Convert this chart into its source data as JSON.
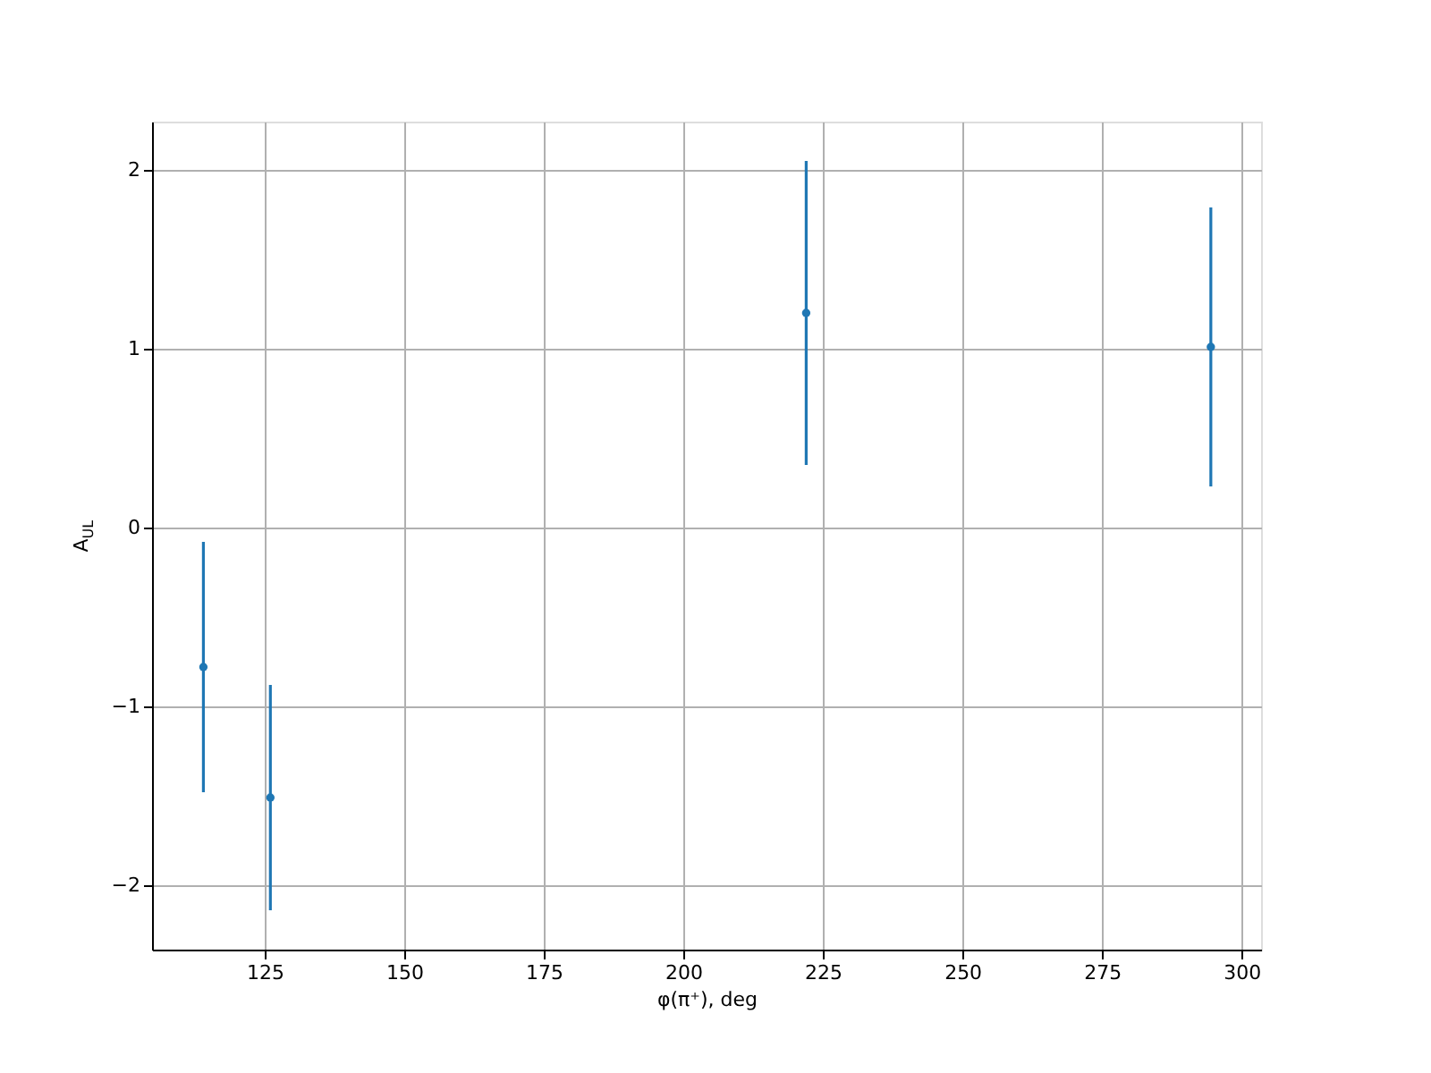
{
  "chart_data": {
    "type": "scatter",
    "xlabel": "φ(π⁺), deg",
    "ylabel": "A$_{UL}$",
    "x": [
      114,
      126,
      222,
      294.5
    ],
    "series": [
      {
        "color": "#1f77b4",
        "values": [
          -0.78,
          -1.51,
          1.2,
          1.01
        ],
        "errors": [
          0.7,
          0.63,
          0.85,
          0.78
        ]
      }
    ],
    "xlim": [
      104.8,
      303.5
    ],
    "xticks": [
      125,
      150,
      175,
      200,
      225,
      250,
      275,
      300
    ],
    "ylim": [
      -2.36,
      2.27
    ],
    "yticks": [
      -2,
      -1,
      0,
      1,
      2
    ],
    "grid": true,
    "marker": "circle"
  }
}
